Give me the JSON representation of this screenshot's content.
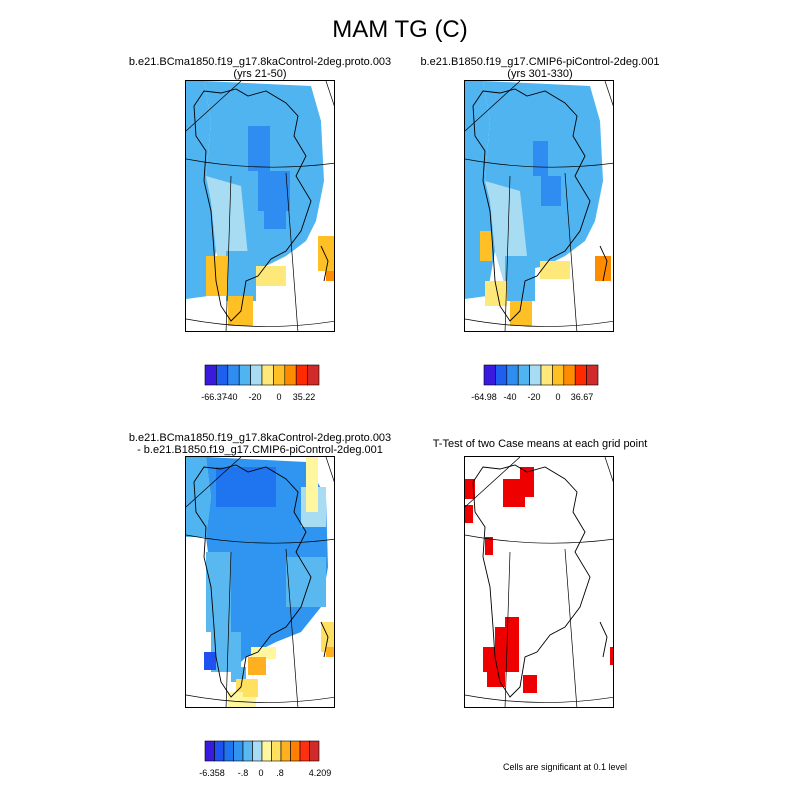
{
  "title": "MAM TG (C)",
  "panels": [
    {
      "line1": "b.e21.BCma1850.f19_g17.8kaControl-2deg.proto.003",
      "line2": "(yrs 21-50)",
      "colorbar": {
        "colors": [
          "#3b1ae0",
          "#1f5ff0",
          "#2f8cf0",
          "#4fb4f0",
          "#a8dcf3",
          "#ffe87a",
          "#ffc026",
          "#ff8c00",
          "#ff2a00",
          "#d02a2a"
        ],
        "labels": [
          "-66.37",
          "-40",
          "-20",
          "0",
          "35.22"
        ]
      }
    },
    {
      "line1": "b.e21.B1850.f19_g17.CMIP6-piControl-2deg.001",
      "line2": "(yrs 301-330)",
      "colorbar": {
        "colors": [
          "#3b1ae0",
          "#1f5ff0",
          "#2f8cf0",
          "#4fb4f0",
          "#a8dcf3",
          "#ffe87a",
          "#ffc026",
          "#ff8c00",
          "#ff2a00",
          "#d02a2a"
        ],
        "labels": [
          "-64.98",
          "-40",
          "-20",
          "0",
          "36.67"
        ]
      }
    },
    {
      "line1": "b.e21.BCma1850.f19_g17.8kaControl-2deg.proto.003",
      "line2": "- b.e21.B1850.f19_g17.CMIP6-piControl-2deg.001",
      "colorbar": {
        "colors": [
          "#3b1ae0",
          "#1f50f0",
          "#1f75f0",
          "#2f95f0",
          "#5ab8f0",
          "#a8dcf3",
          "#fff6a0",
          "#ffe060",
          "#ffb020",
          "#ff7f00",
          "#ff3010",
          "#d02a2a"
        ],
        "labels": [
          "-6.358",
          "-.8",
          "0",
          ".8",
          "4.209"
        ]
      }
    },
    {
      "line1": "T-Test of two Case means at each grid point",
      "line2": ""
    }
  ],
  "note": "Cells are significant at 0.1 level"
}
